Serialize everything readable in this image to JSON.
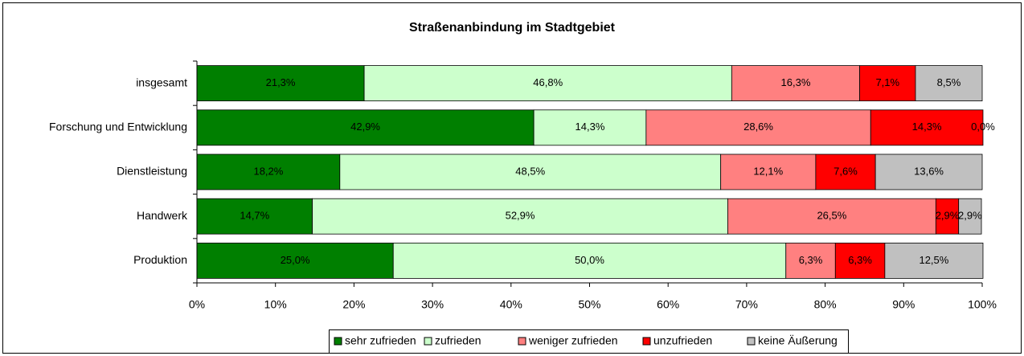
{
  "chart_data": {
    "type": "stacked-barh",
    "title": "Straßenanbindung im Stadtgebiet",
    "categories": [
      "insgesamt",
      "Forschung und Entwicklung",
      "Dienstleistung",
      "Handwerk",
      "Produktion"
    ],
    "series": [
      {
        "name": "sehr zufrieden",
        "color": "#007f00",
        "values": [
          21.3,
          42.9,
          18.2,
          14.7,
          25.0
        ],
        "value_labels": [
          "21,3%",
          "42,9%",
          "18,2%",
          "14,7%",
          "25,0%"
        ]
      },
      {
        "name": "zufrieden",
        "color": "#ccffcc",
        "values": [
          46.8,
          14.3,
          48.5,
          52.9,
          50.0
        ],
        "value_labels": [
          "46,8%",
          "14,3%",
          "48,5%",
          "52,9%",
          "50,0%"
        ]
      },
      {
        "name": "weniger zufrieden",
        "color": "#ff8080",
        "values": [
          16.3,
          28.6,
          12.1,
          26.5,
          6.3
        ],
        "value_labels": [
          "16,3%",
          "28,6%",
          "12,1%",
          "26,5%",
          "6,3%"
        ]
      },
      {
        "name": "unzufrieden",
        "color": "#ff0000",
        "values": [
          7.1,
          14.3,
          7.6,
          2.9,
          6.3
        ],
        "value_labels": [
          "7,1%",
          "14,3%",
          "7,6%",
          "2,9%",
          "6,3%"
        ]
      },
      {
        "name": "keine Äußerung",
        "color": "#c0c0c0",
        "values": [
          8.5,
          0.0,
          13.6,
          2.9,
          12.5
        ],
        "value_labels": [
          "8,5%",
          "0,0%",
          "13,6%",
          "2,9%",
          "12,5%"
        ]
      }
    ],
    "xlim": [
      0,
      100
    ],
    "xticks": [
      {
        "value": 0,
        "label": "0%"
      },
      {
        "value": 10,
        "label": "10%"
      },
      {
        "value": 20,
        "label": "20%"
      },
      {
        "value": 30,
        "label": "30%"
      },
      {
        "value": 40,
        "label": "40%"
      },
      {
        "value": 50,
        "label": "50%"
      },
      {
        "value": 60,
        "label": "60%"
      },
      {
        "value": 70,
        "label": "70%"
      },
      {
        "value": 80,
        "label": "80%"
      },
      {
        "value": 90,
        "label": "90%"
      },
      {
        "value": 100,
        "label": "100%"
      }
    ],
    "legend": "bottom"
  }
}
